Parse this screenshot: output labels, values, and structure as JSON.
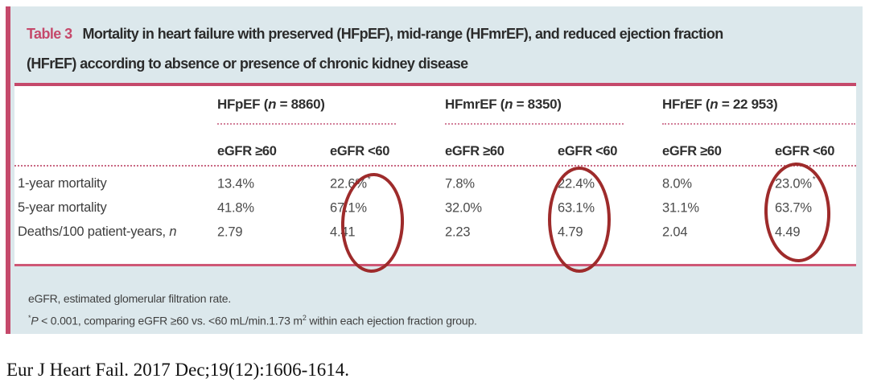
{
  "colors": {
    "accent_pink": "#c5496b",
    "dotted_pink": "#d2809a",
    "panel_blue": "#dce8ec",
    "circle_red": "#9e2b2b",
    "title_text": "#2b2b2b",
    "body_text": "#4b4b4b"
  },
  "title": {
    "prefix": "Table 3",
    "line1": "Mortality in heart failure with preserved (HFpEF), mid-range (HFmrEF), and reduced ejection fraction",
    "line2": "(HFrEF) according to absence or presence of chronic kidney disease"
  },
  "table": {
    "groups": [
      {
        "name": "HFpEF (",
        "n": "n",
        "count": " = 8860)"
      },
      {
        "name": "HFmrEF (",
        "n": "n",
        "count": " = 8350)"
      },
      {
        "name": "HFrEF (",
        "n": "n",
        "count": " = 22 953)"
      }
    ],
    "subheader_ge": "eGFR ≥60",
    "subheader_lt": "eGFR <60",
    "rows": [
      {
        "label": "1-year mortality",
        "label_it": "",
        "cells": [
          {
            "v": "13.4%",
            "s": ""
          },
          {
            "v": "22.6%",
            "s": "*"
          },
          {
            "v": "7.8%",
            "s": ""
          },
          {
            "v": "22.4%",
            "s": "*"
          },
          {
            "v": "8.0%",
            "s": ""
          },
          {
            "v": "23.0%",
            "s": "*"
          }
        ]
      },
      {
        "label": "5-year mortality",
        "label_it": "",
        "cells": [
          {
            "v": "41.8%",
            "s": ""
          },
          {
            "v": "67.1%",
            "s": ""
          },
          {
            "v": "32.0%",
            "s": ""
          },
          {
            "v": "63.1%",
            "s": ""
          },
          {
            "v": "31.1%",
            "s": ""
          },
          {
            "v": "63.7%",
            "s": ""
          }
        ]
      },
      {
        "label": "Deaths/100 patient-years, ",
        "label_it": "n",
        "cells": [
          {
            "v": "2.79",
            "s": ""
          },
          {
            "v": "4.41",
            "s": ""
          },
          {
            "v": "2.23",
            "s": ""
          },
          {
            "v": "4.79",
            "s": ""
          },
          {
            "v": "2.04",
            "s": ""
          },
          {
            "v": "4.49",
            "s": ""
          }
        ]
      }
    ]
  },
  "footnotes": {
    "line1": "eGFR, estimated glomerular filtration rate.",
    "line2": {
      "star": "*",
      "p": "P",
      "mid": " < 0.001, comparing eGFR ≥60 vs. <60 mL/min.1.73 m",
      "sup2": "2",
      "end": " within each ejection fraction group."
    }
  },
  "citation": "Eur J Heart Fail. 2017 Dec;19(12):1606-1614."
}
